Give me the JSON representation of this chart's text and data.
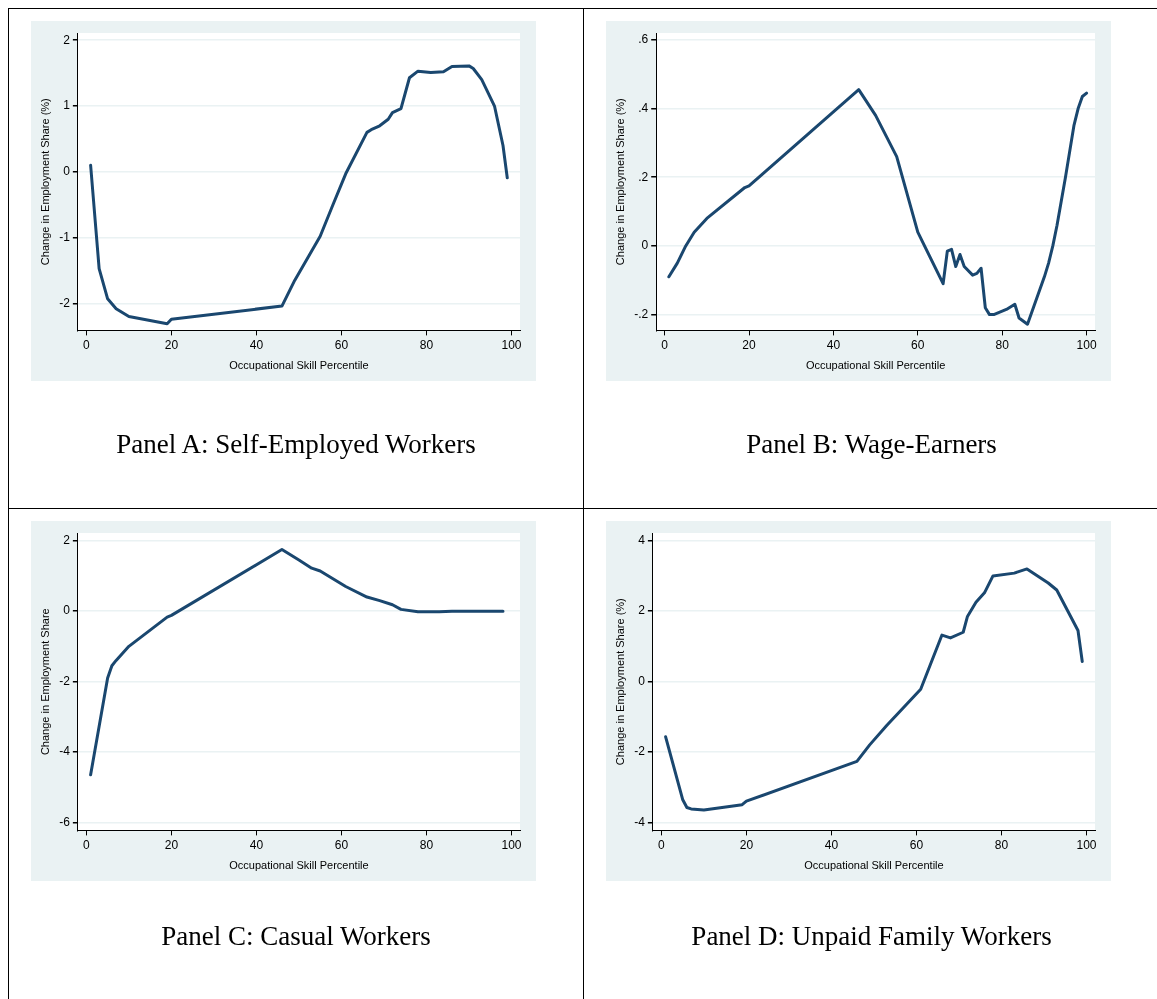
{
  "chart_data": [
    {
      "type": "line",
      "title": "Panel A: Self-Employed Workers",
      "xlabel": "Occupational Skill Percentile",
      "ylabel": "Change in Employment Share (%)",
      "xlim": [
        -2,
        102
      ],
      "xticks": [
        0,
        20,
        40,
        60,
        80,
        100
      ],
      "ylim": [
        -2.41,
        2.11
      ],
      "yticks": [
        -2,
        -1,
        0,
        1,
        2
      ],
      "grid": "y",
      "x": [
        1,
        3,
        5,
        7,
        10,
        19,
        20,
        46,
        49,
        55,
        58,
        61,
        66,
        67,
        69,
        71,
        72,
        74,
        76,
        78,
        81,
        84,
        86,
        90,
        91,
        93,
        96,
        98,
        99
      ],
      "series": [
        {
          "color": "#1a476f",
          "values": [
            0.1,
            -1.47,
            -1.93,
            -2.08,
            -2.2,
            -2.31,
            -2.24,
            -2.04,
            -1.65,
            -0.98,
            -0.5,
            -0.03,
            0.6,
            0.64,
            0.7,
            0.8,
            0.9,
            0.96,
            1.43,
            1.53,
            1.51,
            1.52,
            1.6,
            1.61,
            1.57,
            1.4,
            1.0,
            0.4,
            -0.09
          ]
        }
      ]
    },
    {
      "type": "line",
      "title": "Panel B: Wage-Earners",
      "xlabel": "Occupational Skill Percentile",
      "ylabel": "Change in Employment Share (%)",
      "xlim": [
        -2,
        102
      ],
      "xticks": [
        0,
        20,
        40,
        60,
        80,
        100
      ],
      "ylim": [
        -0.246,
        0.62
      ],
      "yticks": [
        {
          "value": -0.2,
          "label": "-.2"
        },
        0,
        {
          "value": 0.2,
          "label": ".2"
        },
        {
          "value": 0.4,
          "label": ".4"
        },
        {
          "value": 0.6,
          "label": ".6"
        }
      ],
      "grid": "y",
      "x": [
        1,
        3,
        5,
        7,
        10,
        19,
        20,
        46,
        50,
        55,
        60,
        66,
        67,
        68,
        69,
        70,
        71,
        73,
        74,
        75,
        76,
        77,
        78,
        81,
        83,
        84,
        86,
        90,
        91,
        92,
        93,
        95,
        97,
        98,
        99,
        100
      ],
      "series": [
        {
          "color": "#1a476f",
          "values": [
            -0.09,
            -0.05,
            0,
            0.04,
            0.08,
            0.17,
            0.175,
            0.455,
            0.38,
            0.26,
            0.04,
            -0.11,
            -0.015,
            -0.01,
            -0.06,
            -0.025,
            -0.06,
            -0.085,
            -0.08,
            -0.065,
            -0.18,
            -0.2,
            -0.2,
            -0.185,
            -0.17,
            -0.21,
            -0.228,
            -0.09,
            -0.05,
            0,
            0.06,
            0.2,
            0.35,
            0.4,
            0.435,
            0.445
          ]
        }
      ]
    },
    {
      "type": "line",
      "title": "Panel C: Casual Workers",
      "xlabel": "Occupational Skill Percentile",
      "ylabel": "Change in Employment Share",
      "xlim": [
        -2,
        102
      ],
      "xticks": [
        0,
        20,
        40,
        60,
        80,
        100
      ],
      "ylim": [
        -6.23,
        2.22
      ],
      "yticks": [
        -6,
        -4,
        -2,
        0,
        2
      ],
      "grid": "y",
      "x": [
        1,
        5,
        6,
        7,
        10,
        19,
        20,
        46,
        50,
        53,
        55,
        61,
        66,
        69,
        72,
        74,
        78,
        83,
        86,
        98
      ],
      "series": [
        {
          "color": "#1a476f",
          "values": [
            -4.65,
            -1.9,
            -1.55,
            -1.4,
            -1.0,
            -0.17,
            -0.12,
            1.75,
            1.45,
            1.22,
            1.14,
            0.7,
            0.4,
            0.3,
            0.18,
            0.05,
            -0.02,
            -0.02,
            0,
            0
          ]
        }
      ]
    },
    {
      "type": "line",
      "title": "Panel D: Unpaid Family Workers",
      "xlabel": "Occupational Skill Percentile",
      "ylabel": "Change in Employment Share (%)",
      "xlim": [
        -2,
        102
      ],
      "xticks": [
        0,
        20,
        40,
        60,
        80,
        100
      ],
      "ylim": [
        -4.23,
        4.22
      ],
      "yticks": [
        -4,
        -2,
        0,
        2,
        4
      ],
      "grid": "y",
      "x": [
        1,
        5,
        6,
        7,
        10,
        19,
        20,
        46,
        49,
        53,
        61,
        66,
        68,
        71,
        72,
        74,
        76,
        78,
        83,
        86,
        91,
        93,
        98,
        99
      ],
      "series": [
        {
          "color": "#1a476f",
          "values": [
            -1.57,
            -3.35,
            -3.58,
            -3.62,
            -3.65,
            -3.5,
            -3.4,
            -2.27,
            -1.8,
            -1.25,
            -0.22,
            1.32,
            1.24,
            1.4,
            1.85,
            2.25,
            2.52,
            3.0,
            3.08,
            3.2,
            2.8,
            2.6,
            1.45,
            0.57
          ]
        }
      ]
    }
  ]
}
